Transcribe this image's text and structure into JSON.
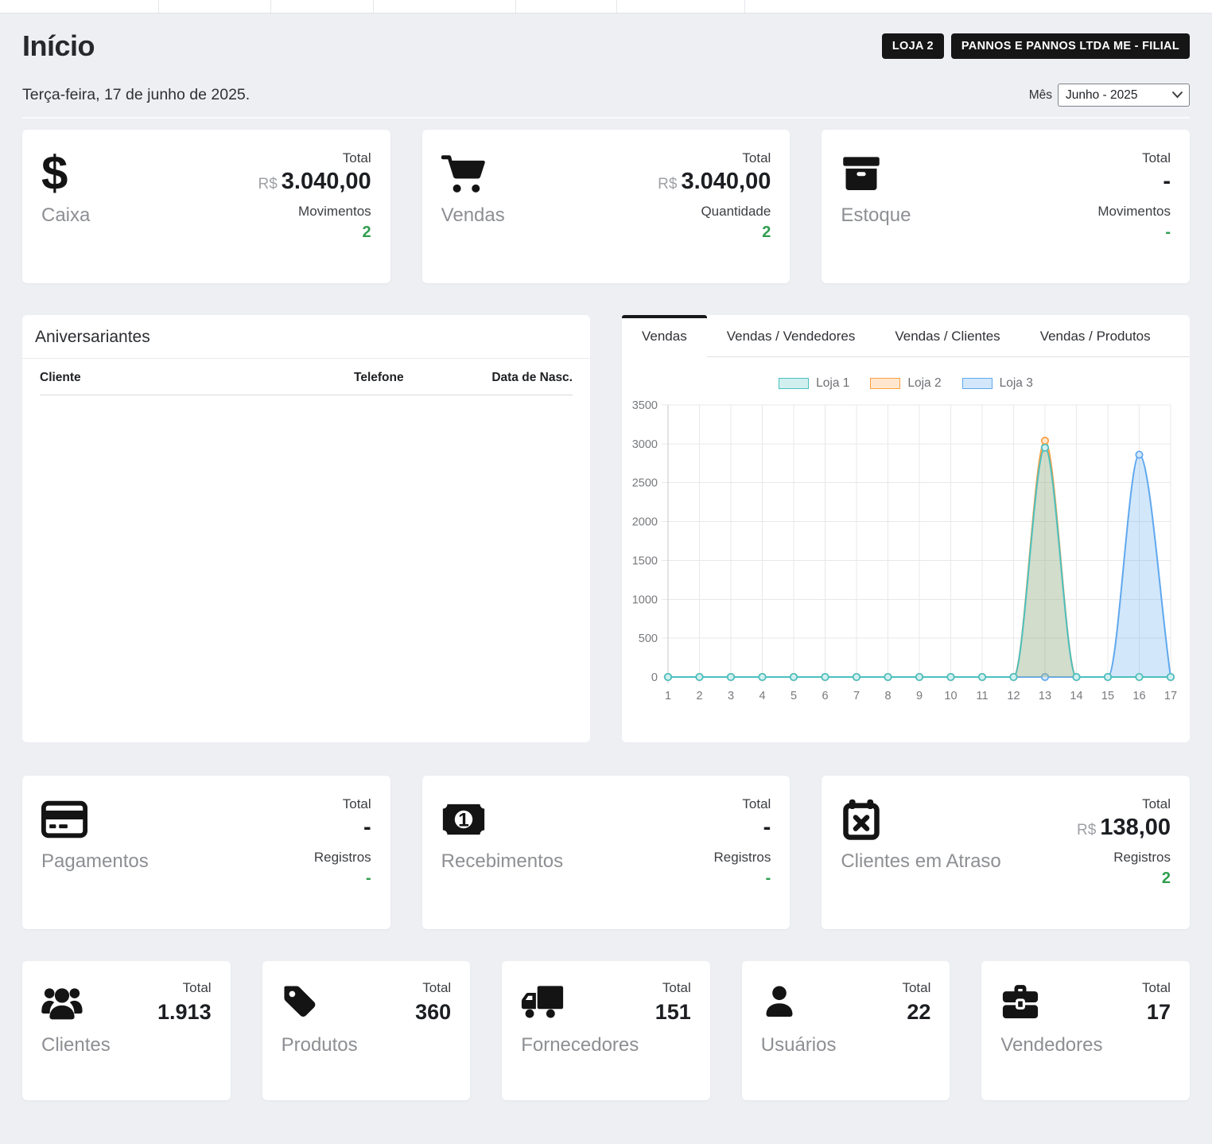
{
  "colors": {
    "positive": "#2f9e4f",
    "badge_bg": "#161616"
  },
  "header": {
    "title": "Início",
    "badge1": "LOJA 2",
    "badge2": "PANNOS E PANNOS LTDA ME - FILIAL",
    "date": "Terça-feira, 17 de junho de 2025.",
    "month_label": "Mês",
    "month_value": "Junho - 2025"
  },
  "cards_row1": [
    {
      "label": "Caixa",
      "icon": "dollar-icon",
      "m1_label": "Total",
      "m1_prefix": "R$",
      "m1_value": "3.040,00",
      "m2_label": "Movimentos",
      "m2_value": "2"
    },
    {
      "label": "Vendas",
      "icon": "cart-icon",
      "m1_label": "Total",
      "m1_prefix": "R$",
      "m1_value": "3.040,00",
      "m2_label": "Quantidade",
      "m2_value": "2"
    },
    {
      "label": "Estoque",
      "icon": "box-icon",
      "m1_label": "Total",
      "m1_prefix": "",
      "m1_value": "-",
      "m2_label": "Movimentos",
      "m2_value": "-"
    }
  ],
  "birthdays": {
    "title": "Aniversariantes",
    "col_client": "Cliente",
    "col_phone": "Telefone",
    "col_birthdate": "Data de Nasc.",
    "rows": []
  },
  "chart": {
    "tabs": [
      {
        "label": "Vendas",
        "active": true
      },
      {
        "label": "Vendas / Vendedores",
        "active": false
      },
      {
        "label": "Vendas / Clientes",
        "active": false
      },
      {
        "label": "Vendas / Produtos",
        "active": false
      }
    ]
  },
  "chart_data": {
    "type": "line",
    "title": "Vendas",
    "x": [
      1,
      2,
      3,
      4,
      5,
      6,
      7,
      8,
      9,
      10,
      11,
      12,
      13,
      14,
      15,
      16,
      17
    ],
    "ylim": [
      0,
      3500
    ],
    "ytick_step": 500,
    "grid": true,
    "legend_position": "top",
    "series": [
      {
        "name": "Loja 1",
        "color": "#4bc0c0",
        "fill": "rgba(75,192,192,0.25)",
        "values": [
          0,
          0,
          0,
          0,
          0,
          0,
          0,
          0,
          0,
          0,
          0,
          0,
          2950,
          0,
          0,
          0,
          0
        ]
      },
      {
        "name": "Loja 2",
        "color": "#ff9f40",
        "fill": "rgba(255,159,64,0.25)",
        "values": [
          0,
          0,
          0,
          0,
          0,
          0,
          0,
          0,
          0,
          0,
          0,
          0,
          3040,
          0,
          0,
          0,
          0
        ]
      },
      {
        "name": "Loja 3",
        "color": "#5fa8ee",
        "fill": "rgba(95,168,238,0.28)",
        "values": [
          0,
          0,
          0,
          0,
          0,
          0,
          0,
          0,
          0,
          0,
          0,
          0,
          0,
          0,
          0,
          2860,
          0
        ]
      }
    ]
  },
  "cards_row2": [
    {
      "label": "Pagamentos",
      "icon": "credit-card-icon",
      "m1_label": "Total",
      "m1_prefix": "",
      "m1_value": "-",
      "m2_label": "Registros",
      "m2_value": "-"
    },
    {
      "label": "Recebimentos",
      "icon": "money-bill-icon",
      "m1_label": "Total",
      "m1_prefix": "",
      "m1_value": "-",
      "m2_label": "Registros",
      "m2_value": "-"
    },
    {
      "label": "Clientes em Atraso",
      "icon": "calendar-x-icon",
      "m1_label": "Total",
      "m1_prefix": "R$",
      "m1_value": "138,00",
      "m2_label": "Registros",
      "m2_value": "2"
    }
  ],
  "cards_row3": [
    {
      "label": "Clientes",
      "icon": "users-icon",
      "total_label": "Total",
      "value": "1.913"
    },
    {
      "label": "Produtos",
      "icon": "tag-icon",
      "total_label": "Total",
      "value": "360"
    },
    {
      "label": "Fornecedores",
      "icon": "truck-icon",
      "total_label": "Total",
      "value": "151"
    },
    {
      "label": "Usuários",
      "icon": "user-icon",
      "total_label": "Total",
      "value": "22"
    },
    {
      "label": "Vendedores",
      "icon": "briefcase-icon",
      "total_label": "Total",
      "value": "17"
    }
  ]
}
